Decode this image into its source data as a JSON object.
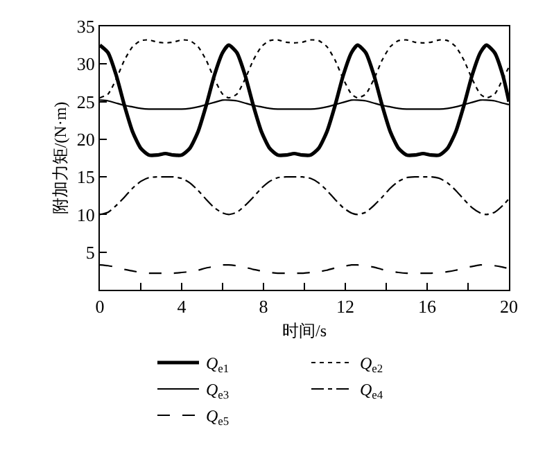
{
  "chart_data": {
    "type": "line",
    "xlabel": "时间/s",
    "ylabel": "附加力矩/(N·m)",
    "x": [
      0,
      0.4,
      0.8,
      1.2,
      1.6,
      2.0,
      2.4,
      2.8,
      3.2,
      3.6,
      4.0,
      4.4,
      4.8,
      5.2,
      5.6,
      6.0,
      6.3,
      6.7,
      7.1,
      7.5,
      7.9,
      8.3,
      8.7,
      9.1,
      9.5,
      9.9,
      10.3,
      10.7,
      11.1,
      11.5,
      11.9,
      12.3,
      12.6,
      13.0,
      13.4,
      13.8,
      14.2,
      14.6,
      15.0,
      15.4,
      15.8,
      16.2,
      16.6,
      17.0,
      17.4,
      17.8,
      18.2,
      18.6,
      18.9,
      19.3,
      19.7,
      20.0
    ],
    "series": [
      {
        "name": "Q$_{e1}$",
        "color": "#000000",
        "line_style": "solid",
        "values": [
          32.5,
          31.5,
          28.5,
          24.5,
          21,
          18.8,
          17.9,
          17.9,
          18.1,
          17.9,
          17.9,
          18.8,
          21,
          24.5,
          28.5,
          31.5,
          32.5,
          31.5,
          28.5,
          24.5,
          21,
          18.8,
          17.9,
          17.9,
          18.1,
          17.9,
          17.9,
          18.8,
          21,
          24.5,
          28.5,
          31.5,
          32.5,
          31.5,
          28.5,
          24.5,
          21,
          18.8,
          17.9,
          17.9,
          18.1,
          17.9,
          17.9,
          18.8,
          21,
          24.5,
          28.5,
          31.5,
          32.5,
          31.5,
          28.5,
          25
        ]
      },
      {
        "name": "Q$_{e2}$",
        "color": "#000000",
        "line_style": "dotted",
        "values": [
          25.5,
          26,
          28,
          30.5,
          32.3,
          33.1,
          33.2,
          32.9,
          32.8,
          32.9,
          33.2,
          33.1,
          32.3,
          30.5,
          28,
          26,
          25.5,
          26,
          28,
          30.5,
          32.3,
          33.1,
          33.2,
          32.9,
          32.8,
          32.9,
          33.2,
          33.1,
          32.3,
          30.5,
          28,
          26,
          25.5,
          26,
          28,
          30.5,
          32.3,
          33.1,
          33.2,
          32.9,
          32.8,
          32.9,
          33.2,
          33.1,
          32.3,
          30.5,
          28,
          26,
          25.5,
          26,
          28,
          29.6
        ]
      },
      {
        "name": "Q$_{e3}$",
        "color": "#000000",
        "line_style": "solid",
        "values": [
          25.2,
          25.1,
          24.8,
          24.5,
          24.3,
          24.1,
          24.0,
          24.0,
          24.0,
          24.0,
          24.0,
          24.1,
          24.3,
          24.6,
          24.9,
          25.2,
          25.2,
          25.1,
          24.8,
          24.5,
          24.3,
          24.1,
          24.0,
          24.0,
          24.0,
          24.0,
          24.0,
          24.1,
          24.3,
          24.6,
          24.9,
          25.2,
          25.2,
          25.1,
          24.8,
          24.5,
          24.3,
          24.1,
          24.0,
          24.0,
          24.0,
          24.0,
          24.0,
          24.1,
          24.3,
          24.6,
          24.9,
          25.2,
          25.2,
          25.1,
          24.8,
          24.6
        ]
      },
      {
        "name": "Q$_{e4}$",
        "color": "#000000",
        "line_style": "dashdot",
        "values": [
          10,
          10.3,
          11.2,
          12.3,
          13.5,
          14.4,
          14.9,
          15.0,
          15.0,
          15.0,
          14.8,
          14.2,
          13.2,
          12.0,
          10.9,
          10.2,
          10,
          10.3,
          11.2,
          12.3,
          13.5,
          14.4,
          14.9,
          15.0,
          15.0,
          15.0,
          14.8,
          14.2,
          13.2,
          12.0,
          10.9,
          10.2,
          10,
          10.3,
          11.2,
          12.3,
          13.5,
          14.4,
          14.9,
          15.0,
          15.0,
          15.0,
          14.8,
          14.2,
          13.2,
          12.0,
          10.9,
          10.2,
          10,
          10.3,
          11.2,
          12.1
        ]
      },
      {
        "name": "Q$_{e5}$",
        "color": "#000000",
        "line_style": "dashed",
        "values": [
          3.3,
          3.2,
          3.0,
          2.7,
          2.5,
          2.3,
          2.2,
          2.2,
          2.2,
          2.2,
          2.3,
          2.4,
          2.6,
          2.9,
          3.1,
          3.3,
          3.3,
          3.2,
          3.0,
          2.7,
          2.5,
          2.3,
          2.2,
          2.2,
          2.2,
          2.2,
          2.3,
          2.4,
          2.6,
          2.9,
          3.1,
          3.3,
          3.3,
          3.2,
          3.0,
          2.7,
          2.5,
          2.3,
          2.2,
          2.2,
          2.2,
          2.2,
          2.3,
          2.4,
          2.6,
          2.9,
          3.1,
          3.3,
          3.3,
          3.2,
          3.0,
          2.8
        ]
      }
    ],
    "xlim": [
      0,
      20
    ],
    "xticks": [
      0,
      {
        "value": 2,
        "label": null
      },
      4,
      {
        "value": 6,
        "label": null
      },
      8,
      {
        "value": 10,
        "label": null
      },
      12,
      {
        "value": 14,
        "label": null
      },
      16,
      {
        "value": 18,
        "label": null
      },
      20
    ],
    "ylim": [
      0,
      35
    ],
    "yticks": [
      5,
      10,
      15,
      20,
      25,
      30,
      35
    ],
    "legend": "bottom",
    "marker": "none"
  }
}
